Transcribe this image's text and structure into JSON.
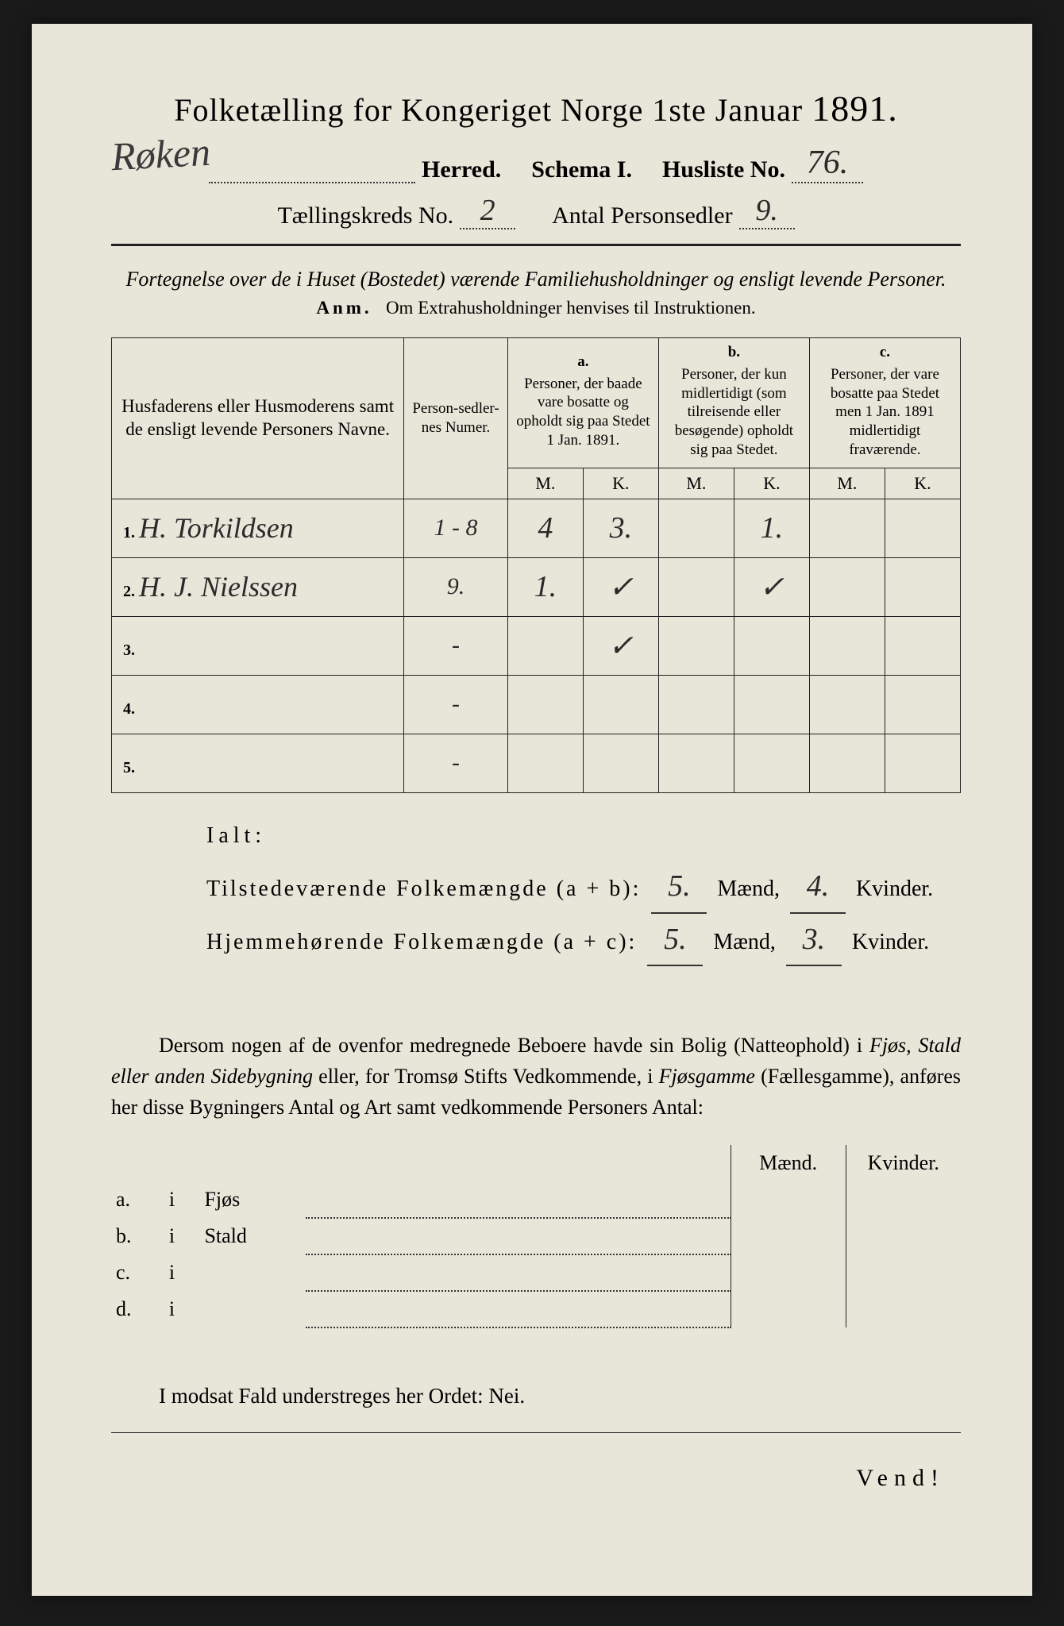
{
  "title": {
    "main": "Folketælling for Kongeriget Norge 1ste Januar",
    "year": "1891."
  },
  "header": {
    "herred_value": "Røken",
    "herred_label": "Herred.",
    "schema_label": "Schema I.",
    "husliste_label": "Husliste No.",
    "husliste_value": "76.",
    "kreds_label": "Tællingskreds No.",
    "kreds_value": "2",
    "antal_label": "Antal Personsedler",
    "antal_value": "9."
  },
  "forte": {
    "line": "Fortegnelse over de i Huset (Bostedet) værende Familiehusholdninger og ensligt levende Personer."
  },
  "anm": {
    "label": "Anm.",
    "text": "Om Extrahusholdninger henvises til Instruktionen."
  },
  "table_headers": {
    "names": "Husfaderens eller Husmoderens samt de ensligt levende Personers Navne.",
    "nummer": "Person-sedler-nes Numer.",
    "a_label": "a.",
    "a_text": "Personer, der baade vare bosatte og opholdt sig paa Stedet 1 Jan. 1891.",
    "b_label": "b.",
    "b_text": "Personer, der kun midlertidigt (som tilreisende eller besøgende) opholdt sig paa Stedet.",
    "c_label": "c.",
    "c_text": "Personer, der vare bosatte paa Stedet men 1 Jan. 1891 midlertidigt fraværende.",
    "m": "M.",
    "k": "K."
  },
  "rows": [
    {
      "n": "1.",
      "name": "H. Torkildsen",
      "num": "1 - 8",
      "aM": "4",
      "aK": "3.",
      "bM": "",
      "bK": "1.",
      "cM": "",
      "cK": ""
    },
    {
      "n": "2.",
      "name": "H. J. Nielssen",
      "num": "9.",
      "aM": "1.",
      "aK": "✓",
      "bM": "",
      "bK": "✓",
      "cM": "",
      "cK": ""
    },
    {
      "n": "3.",
      "name": "",
      "num": "-",
      "aM": "",
      "aK": "✓",
      "bM": "",
      "bK": "",
      "cM": "",
      "cK": ""
    },
    {
      "n": "4.",
      "name": "",
      "num": "-",
      "aM": "",
      "aK": "",
      "bM": "",
      "bK": "",
      "cM": "",
      "cK": ""
    },
    {
      "n": "5.",
      "name": "",
      "num": "-",
      "aM": "",
      "aK": "",
      "bM": "",
      "bK": "",
      "cM": "",
      "cK": ""
    }
  ],
  "ialt": {
    "label": "Ialt:",
    "t_label": "Tilstedeværende Folkemængde (a + b):",
    "h_label": "Hjemmehørende Folkemængde (a + c):",
    "maend": "Mænd,",
    "kvinder": "Kvinder.",
    "t_m": "5.",
    "t_k": "4.",
    "h_m": "5.",
    "h_k": "3."
  },
  "para": {
    "text1": "Dersom nogen af de ovenfor medregnede Beboere havde sin Bolig (Natteophold) i ",
    "it1": "Fjøs, Stald eller anden Sidebygning",
    "text2": " eller, for Tromsø Stifts Vedkommende, i ",
    "it2": "Fjøsgamme",
    "text3": " (Fællesgamme), anføres her disse Bygningers Antal og Art samt vedkommende Personers Antal:"
  },
  "side": {
    "maend": "Mænd.",
    "kvinder": "Kvinder.",
    "rows": [
      {
        "a": "a.",
        "i": "i",
        "label": "Fjøs"
      },
      {
        "a": "b.",
        "i": "i",
        "label": "Stald"
      },
      {
        "a": "c.",
        "i": "i",
        "label": ""
      },
      {
        "a": "d.",
        "i": "i",
        "label": ""
      }
    ]
  },
  "modsat": "I modsat Fald understreges her Ordet: Nei.",
  "vend": "Vend!",
  "colors": {
    "paper": "#e8e6d8",
    "ink": "#222222",
    "bg": "#1a1a1a"
  }
}
